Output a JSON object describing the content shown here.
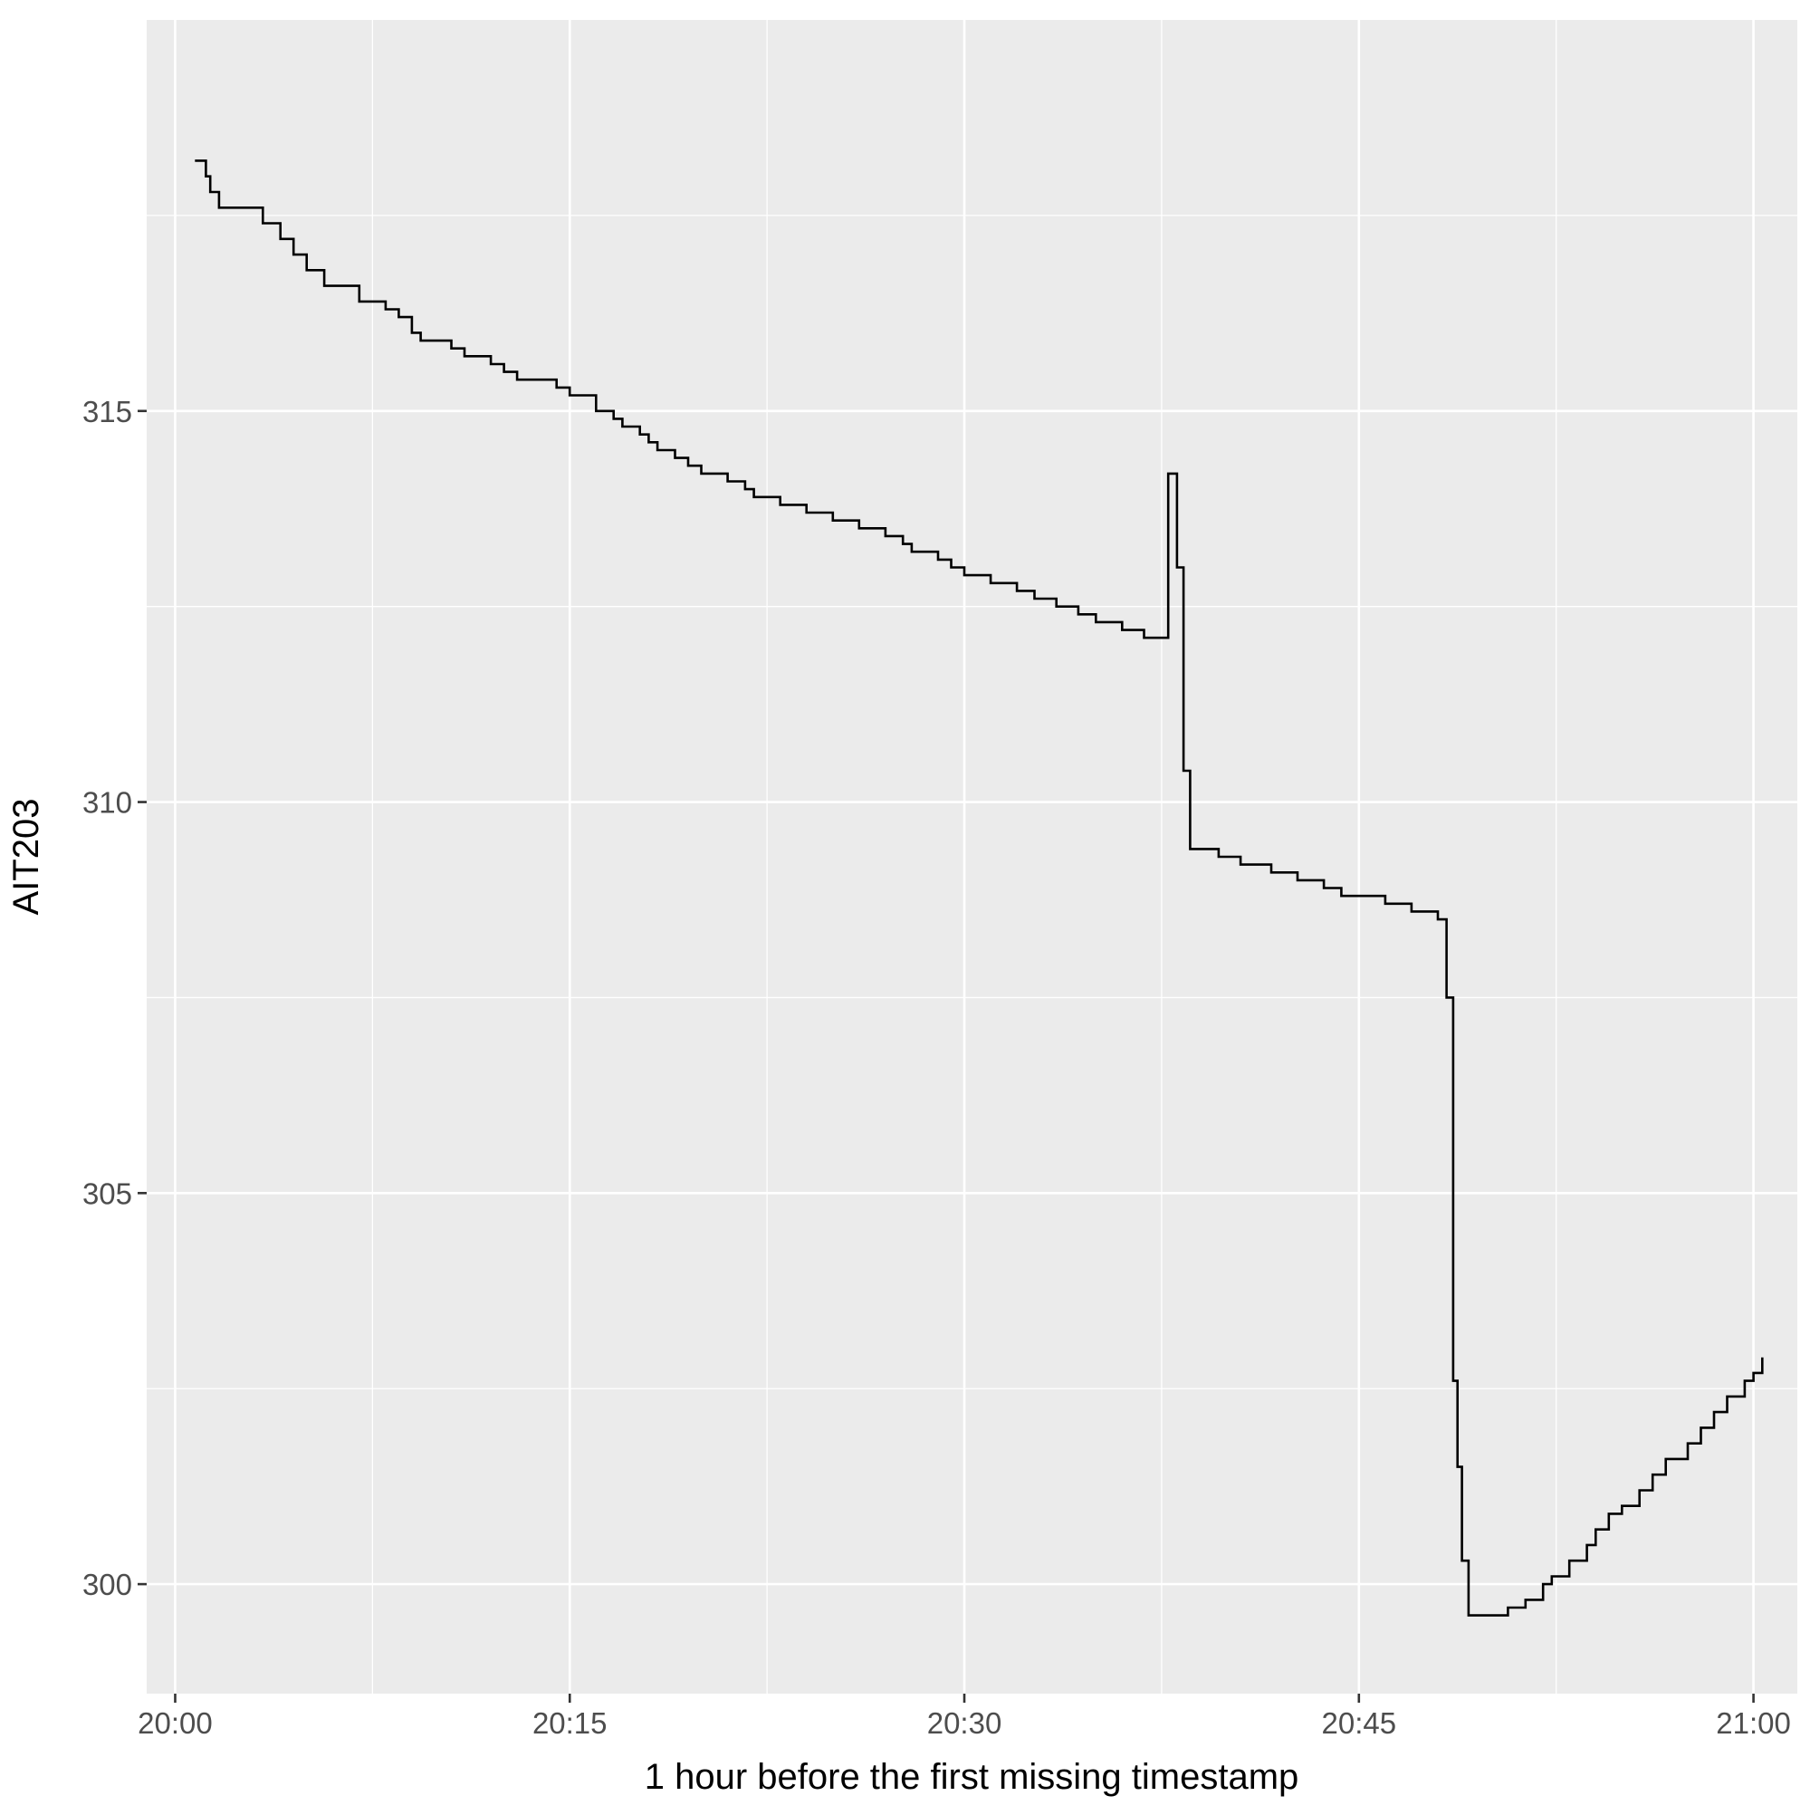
{
  "chart_data": {
    "type": "line",
    "line_style": "step",
    "title": "",
    "xlabel": "1 hour before the first missing timestamp",
    "ylabel": "AIT203",
    "x_unit": "clock time (HH:MM)",
    "xlim": [
      "19:58:55",
      "21:01:40"
    ],
    "ylim": [
      298.6,
      320.0
    ],
    "x_ticks": [
      "20:00",
      "20:15",
      "20:30",
      "20:45",
      "21:00"
    ],
    "y_ticks": [
      300,
      305,
      310,
      315
    ],
    "grid": true,
    "legend": "none",
    "colors": {
      "panel": "#EBEBEB",
      "grid": "#FFFFFF",
      "line": "#000000",
      "tick_label": "#4D4D4D"
    },
    "series": [
      {
        "x": [
          "20:00:45",
          "20:01:10",
          "20:01:20",
          "20:01:40",
          "20:02:00",
          "20:03:20",
          "20:03:40",
          "20:04:00",
          "20:04:30",
          "20:05:00",
          "20:05:20",
          "20:05:40",
          "20:07:00",
          "20:08:00",
          "20:08:30",
          "20:09:00",
          "20:09:20",
          "20:10:30",
          "20:11:00",
          "20:12:00",
          "20:12:30",
          "20:13:00",
          "20:14:30",
          "20:15:00",
          "20:16:00",
          "20:16:40",
          "20:17:00",
          "20:17:40",
          "20:18:00",
          "20:18:20",
          "20:19:00",
          "20:19:30",
          "20:20:00",
          "20:21:00",
          "20:21:40",
          "20:22:00",
          "20:23:00",
          "20:24:00",
          "20:25:00",
          "20:26:00",
          "20:27:00",
          "20:27:40",
          "20:28:00",
          "20:29:00",
          "20:29:30",
          "20:30:00",
          "20:31:00",
          "20:32:00",
          "20:32:40",
          "20:33:30",
          "20:34:20",
          "20:35:00",
          "20:36:00",
          "20:36:50",
          "20:37:30",
          "20:37:45",
          "20:38:05",
          "20:38:20",
          "20:38:35",
          "20:39:00",
          "20:39:40",
          "20:40:30",
          "20:41:40",
          "20:42:40",
          "20:43:40",
          "20:44:20",
          "20:45:20",
          "20:46:00",
          "20:47:00",
          "20:47:40",
          "20:48:00",
          "20:48:20",
          "20:48:35",
          "20:48:45",
          "20:48:55",
          "20:49:10",
          "20:49:30",
          "20:50:40",
          "20:51:20",
          "20:52:00",
          "20:52:20",
          "20:53:00",
          "20:53:40",
          "20:54:00",
          "20:54:30",
          "20:55:00",
          "20:55:40",
          "20:56:10",
          "20:56:40",
          "20:57:30",
          "20:58:00",
          "20:58:30",
          "20:59:00",
          "20:59:40",
          "21:00:00",
          "21:00:20"
        ],
        "y": [
          318.2,
          318.0,
          317.8,
          317.6,
          317.6,
          317.4,
          317.4,
          317.2,
          317.0,
          316.8,
          316.8,
          316.6,
          316.4,
          316.3,
          316.2,
          316.0,
          315.9,
          315.8,
          315.7,
          315.6,
          315.5,
          315.4,
          315.3,
          315.2,
          315.0,
          314.9,
          314.8,
          314.7,
          314.6,
          314.5,
          314.4,
          314.3,
          314.2,
          314.1,
          314.0,
          313.9,
          313.8,
          313.7,
          313.6,
          313.5,
          313.4,
          313.3,
          313.2,
          313.1,
          313.0,
          312.9,
          312.8,
          312.7,
          312.6,
          312.5,
          312.4,
          312.3,
          312.2,
          312.1,
          312.1,
          314.2,
          313.0,
          310.4,
          309.4,
          309.4,
          309.3,
          309.2,
          309.1,
          309.0,
          308.9,
          308.8,
          308.8,
          308.7,
          308.6,
          308.6,
          308.5,
          307.5,
          302.6,
          301.5,
          300.3,
          299.6,
          299.6,
          299.7,
          299.8,
          300.0,
          300.1,
          300.3,
          300.5,
          300.7,
          300.9,
          301.0,
          301.2,
          301.4,
          301.6,
          301.8,
          302.0,
          302.2,
          302.4,
          302.6,
          302.7,
          302.9
        ]
      }
    ]
  }
}
